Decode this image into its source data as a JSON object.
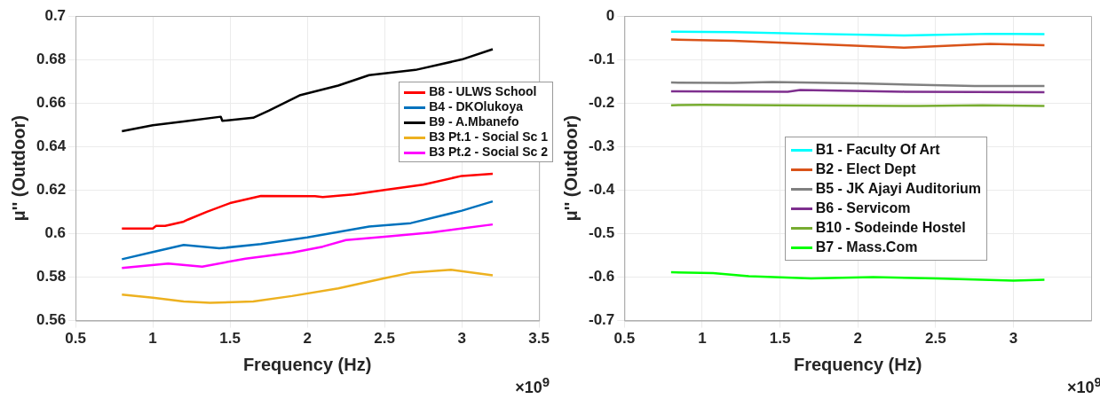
{
  "chart_data": [
    {
      "type": "line",
      "xlabel": "Frequency (Hz)",
      "ylabel": "μ'' (Outdoor)",
      "annotations": [
        "×10$^{9}$"
      ],
      "xlim": [
        0.5,
        3.5
      ],
      "xticks": [
        0.5,
        1,
        1.5,
        2,
        2.5,
        3,
        3.5
      ],
      "ylim": [
        0.56,
        0.7
      ],
      "yticks": [
        0.56,
        0.58,
        0.6,
        0.62,
        0.64,
        0.66,
        0.68,
        0.7
      ],
      "grid": true,
      "legend": "top right",
      "marker": "none",
      "line_style": "solid",
      "series": [
        {
          "name": "B8 - ULWS School",
          "color": "#ff0000",
          "x": [
            0.8,
            1.0,
            1.02,
            1.08,
            1.2,
            1.23,
            1.35,
            1.5,
            1.7,
            2.05,
            2.1,
            2.3,
            2.5,
            2.75,
            3.0,
            3.2
          ],
          "values": [
            0.6023,
            0.6023,
            0.6035,
            0.6035,
            0.6055,
            0.6065,
            0.61,
            0.614,
            0.6173,
            0.6172,
            0.6168,
            0.618,
            0.62,
            0.6225,
            0.6265,
            0.6275
          ]
        },
        {
          "name": "B4 - DKOlukoya",
          "color": "#0072bd",
          "x": [
            0.8,
            1.0,
            1.2,
            1.43,
            1.7,
            2.0,
            2.4,
            2.67,
            3.0,
            3.2
          ],
          "values": [
            0.5882,
            0.5915,
            0.5948,
            0.5932,
            0.5952,
            0.5982,
            0.6032,
            0.6048,
            0.6105,
            0.6148
          ]
        },
        {
          "name": "B9 - A.Mbanefo",
          "color": "#000000",
          "x": [
            0.8,
            1.0,
            1.2,
            1.44,
            1.45,
            1.65,
            1.75,
            1.95,
            2.2,
            2.4,
            2.7,
            3.0,
            3.2
          ],
          "values": [
            0.647,
            0.6498,
            0.6515,
            0.6537,
            0.6518,
            0.6532,
            0.6565,
            0.6635,
            0.668,
            0.6728,
            0.6752,
            0.68,
            0.6847
          ]
        },
        {
          "name": "B3 Pt.1 - Social Sc 1",
          "color": "#edb120",
          "x": [
            0.8,
            1.0,
            1.2,
            1.37,
            1.65,
            1.9,
            2.2,
            2.5,
            2.67,
            2.93,
            3.2
          ],
          "values": [
            0.572,
            0.5705,
            0.5688,
            0.5682,
            0.5688,
            0.5713,
            0.5748,
            0.5795,
            0.582,
            0.5834,
            0.5808
          ]
        },
        {
          "name": "B3 Pt.2 - Social Sc 2",
          "color": "#ff00ff",
          "x": [
            0.8,
            1.1,
            1.32,
            1.6,
            1.9,
            2.1,
            2.25,
            2.5,
            2.8,
            3.2
          ],
          "values": [
            0.5842,
            0.5862,
            0.5848,
            0.5885,
            0.5912,
            0.594,
            0.597,
            0.5985,
            0.6005,
            0.6042
          ]
        }
      ]
    },
    {
      "type": "line",
      "xlabel": "Frequency (Hz)",
      "ylabel": "μ'' (Outdoor)",
      "annotations": [
        "×10$^{9}$"
      ],
      "xlim": [
        0.5,
        3.5
      ],
      "xticks": [
        0.5,
        1,
        1.5,
        2,
        2.5,
        3
      ],
      "ylim": [
        -0.7,
        0
      ],
      "yticks": [
        -0.7,
        -0.6,
        -0.5,
        -0.4,
        -0.3,
        -0.2,
        -0.1,
        0
      ],
      "grid": true,
      "legend": "center",
      "marker": "none",
      "line_style": "solid",
      "series": [
        {
          "name": "B1 - Faculty Of Art",
          "color": "#00ffff",
          "x": [
            0.8,
            1.2,
            1.7,
            2.3,
            2.85,
            3.2
          ],
          "values": [
            -0.036,
            -0.037,
            -0.041,
            -0.045,
            -0.041,
            -0.042
          ]
        },
        {
          "name": "B2 - Elect Dept",
          "color": "#d95319",
          "x": [
            0.8,
            1.2,
            1.7,
            2.3,
            2.85,
            3.2
          ],
          "values": [
            -0.054,
            -0.057,
            -0.064,
            -0.073,
            -0.064,
            -0.067
          ]
        },
        {
          "name": "B5 - JK Ajayi Auditorium",
          "color": "#808080",
          "x": [
            0.8,
            1.2,
            1.45,
            2.0,
            2.75,
            3.2
          ],
          "values": [
            -0.153,
            -0.154,
            -0.152,
            -0.155,
            -0.161,
            -0.161
          ]
        },
        {
          "name": "B6 - Servicom",
          "color": "#7e2f8e",
          "x": [
            0.8,
            1.55,
            1.63,
            2.3,
            3.2
          ],
          "values": [
            -0.173,
            -0.174,
            -0.17,
            -0.174,
            -0.175
          ]
        },
        {
          "name": "B10 - Sodeinde Hostel",
          "color": "#77ac30",
          "x": [
            0.8,
            1.0,
            1.5,
            2.4,
            2.8,
            3.2
          ],
          "values": [
            -0.205,
            -0.204,
            -0.205,
            -0.207,
            -0.205,
            -0.207
          ]
        },
        {
          "name": "B7 - Mass.Com",
          "color": "#00ff00",
          "x": [
            0.8,
            1.07,
            1.3,
            1.7,
            2.1,
            2.5,
            3.0,
            3.2
          ],
          "values": [
            -0.589,
            -0.591,
            -0.598,
            -0.603,
            -0.6,
            -0.603,
            -0.608,
            -0.606
          ]
        }
      ]
    }
  ]
}
